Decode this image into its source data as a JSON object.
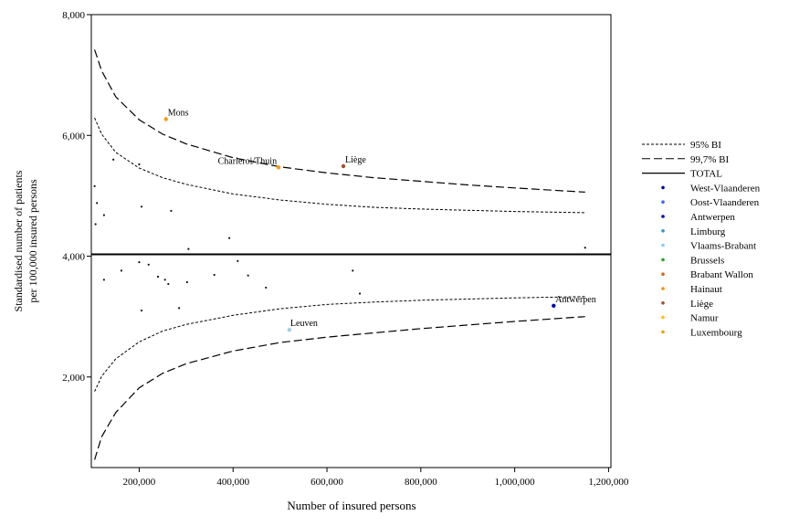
{
  "chart_data": {
    "type": "scatter",
    "title": "",
    "xlabel": "Number of insured persons",
    "ylabel_lines": [
      "Standardised number of patients",
      "per 100,000 insured persons"
    ],
    "xlim": [
      98000,
      1205000
    ],
    "ylim": [
      500,
      8000
    ],
    "x_ticks": [
      200000,
      400000,
      600000,
      800000,
      1000000,
      1200000
    ],
    "x_tick_labels": [
      "200,000",
      "400,000",
      "600,000",
      "800,000",
      "1,000,000",
      "1,200,000"
    ],
    "y_ticks": [
      2000,
      4000,
      6000,
      8000
    ],
    "y_tick_labels": [
      "2,000",
      "4,000",
      "6,000",
      "8,000"
    ],
    "total": 4030,
    "ci95_upper": [
      [
        105000,
        6290
      ],
      [
        120000,
        6020
      ],
      [
        150000,
        5720
      ],
      [
        200000,
        5460
      ],
      [
        250000,
        5300
      ],
      [
        300000,
        5190
      ],
      [
        400000,
        5030
      ],
      [
        500000,
        4930
      ],
      [
        600000,
        4860
      ],
      [
        700000,
        4810
      ],
      [
        800000,
        4780
      ],
      [
        900000,
        4760
      ],
      [
        1000000,
        4740
      ],
      [
        1150000,
        4720
      ]
    ],
    "ci95_lower": [
      [
        105000,
        1760
      ],
      [
        120000,
        2010
      ],
      [
        150000,
        2300
      ],
      [
        200000,
        2580
      ],
      [
        250000,
        2760
      ],
      [
        300000,
        2870
      ],
      [
        400000,
        3020
      ],
      [
        500000,
        3130
      ],
      [
        600000,
        3200
      ],
      [
        700000,
        3240
      ],
      [
        800000,
        3270
      ],
      [
        900000,
        3290
      ],
      [
        1000000,
        3310
      ],
      [
        1150000,
        3330
      ]
    ],
    "ci997_upper": [
      [
        105000,
        7420
      ],
      [
        120000,
        7070
      ],
      [
        150000,
        6640
      ],
      [
        200000,
        6260
      ],
      [
        250000,
        6020
      ],
      [
        300000,
        5860
      ],
      [
        400000,
        5630
      ],
      [
        500000,
        5480
      ],
      [
        600000,
        5380
      ],
      [
        700000,
        5300
      ],
      [
        800000,
        5240
      ],
      [
        900000,
        5180
      ],
      [
        1000000,
        5130
      ],
      [
        1150000,
        5060
      ]
    ],
    "ci997_lower": [
      [
        105000,
        630
      ],
      [
        120000,
        1010
      ],
      [
        150000,
        1410
      ],
      [
        200000,
        1820
      ],
      [
        250000,
        2060
      ],
      [
        300000,
        2220
      ],
      [
        400000,
        2430
      ],
      [
        500000,
        2570
      ],
      [
        600000,
        2660
      ],
      [
        700000,
        2730
      ],
      [
        800000,
        2800
      ],
      [
        900000,
        2860
      ],
      [
        1000000,
        2920
      ],
      [
        1150000,
        3000
      ]
    ],
    "points": [
      {
        "x": 105000,
        "y": 5160,
        "c": "#111111"
      },
      {
        "x": 110000,
        "y": 4880,
        "c": "#111111"
      },
      {
        "x": 107000,
        "y": 4530,
        "c": "#111111"
      },
      {
        "x": 125000,
        "y": 4680,
        "c": "#111111"
      },
      {
        "x": 125000,
        "y": 3610,
        "c": "#111111"
      },
      {
        "x": 145000,
        "y": 5600,
        "c": "#111111"
      },
      {
        "x": 162000,
        "y": 3760,
        "c": "#111111"
      },
      {
        "x": 200000,
        "y": 5520,
        "c": "#111111"
      },
      {
        "x": 200000,
        "y": 3900,
        "c": "#111111"
      },
      {
        "x": 205000,
        "y": 3100,
        "c": "#111111"
      },
      {
        "x": 205000,
        "y": 4820,
        "c": "#111111"
      },
      {
        "x": 220000,
        "y": 3860,
        "c": "#111111"
      },
      {
        "x": 240000,
        "y": 3660,
        "c": "#111111"
      },
      {
        "x": 255000,
        "y": 3610,
        "c": "#111111"
      },
      {
        "x": 262000,
        "y": 3540,
        "c": "#111111"
      },
      {
        "x": 268000,
        "y": 4750,
        "c": "#111111"
      },
      {
        "x": 285000,
        "y": 3140,
        "c": "#111111"
      },
      {
        "x": 302000,
        "y": 3570,
        "c": "#111111"
      },
      {
        "x": 305000,
        "y": 4120,
        "c": "#111111"
      },
      {
        "x": 360000,
        "y": 3690,
        "c": "#111111"
      },
      {
        "x": 392000,
        "y": 4300,
        "c": "#111111"
      },
      {
        "x": 410000,
        "y": 3920,
        "c": "#111111"
      },
      {
        "x": 432000,
        "y": 3680,
        "c": "#111111"
      },
      {
        "x": 470000,
        "y": 3480,
        "c": "#111111"
      },
      {
        "x": 655000,
        "y": 3760,
        "c": "#111111"
      },
      {
        "x": 670000,
        "y": 3380,
        "c": "#111111"
      },
      {
        "x": 1150000,
        "y": 4140,
        "c": "#111111"
      }
    ],
    "labeled_points": [
      {
        "label": "Mons",
        "x": 257000,
        "y": 6270,
        "c": "#f39c12",
        "anchor": "start",
        "dx": 2,
        "dy": -4
      },
      {
        "label": "Charleroi/Thuin",
        "x": 497000,
        "y": 5470,
        "c": "#f39c12",
        "anchor": "end",
        "dx": -2,
        "dy": -4
      },
      {
        "label": "Liège",
        "x": 635000,
        "y": 5490,
        "c": "#a0522d",
        "anchor": "start",
        "dx": 2,
        "dy": -4
      },
      {
        "label": "Leuven",
        "x": 520000,
        "y": 2780,
        "c": "#9fcfea",
        "anchor": "start",
        "dx": 1,
        "dy": -4
      },
      {
        "label": "Antwerpen",
        "x": 1083000,
        "y": 3180,
        "c": "#0000c8",
        "anchor": "start",
        "dx": 2,
        "dy": -4
      }
    ],
    "legend_position": "right",
    "legend": [
      {
        "label": "95% BI",
        "type": "line",
        "dash": "short"
      },
      {
        "label": "99,7% BI",
        "type": "line",
        "dash": "long"
      },
      {
        "label": "TOTAL",
        "type": "line",
        "dash": "solid"
      },
      {
        "label": "West-Vlaanderen",
        "type": "dot",
        "color": "#00008b"
      },
      {
        "label": "Oost-Vlaanderen",
        "type": "dot",
        "color": "#4169e1"
      },
      {
        "label": "Antwerpen",
        "type": "dot",
        "color": "#0000cd"
      },
      {
        "label": "Limburg",
        "type": "dot",
        "color": "#3a8fd8"
      },
      {
        "label": "Vlaams-Brabant",
        "type": "dot",
        "color": "#87cefa"
      },
      {
        "label": "Brussels",
        "type": "dot",
        "color": "#22aa22"
      },
      {
        "label": "Brabant Wallon",
        "type": "dot",
        "color": "#d2691e"
      },
      {
        "label": "Hainaut",
        "type": "dot",
        "color": "#ff8c00"
      },
      {
        "label": "Liège",
        "type": "dot",
        "color": "#a0522d"
      },
      {
        "label": "Namur",
        "type": "dot",
        "color": "#ffc20e"
      },
      {
        "label": "Luxembourg",
        "type": "dot",
        "color": "#f39c12"
      }
    ]
  }
}
